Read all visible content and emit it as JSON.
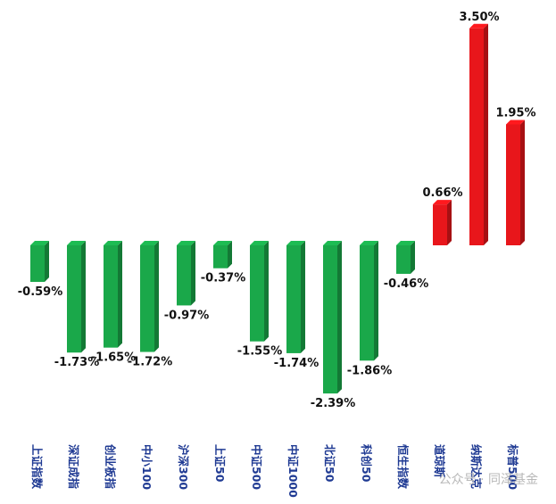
{
  "chart_data": {
    "type": "bar",
    "categories": [
      "上证指数",
      "深证成指",
      "创业板指",
      "中小100",
      "沪深300",
      "上证50",
      "中证500",
      "中证1000",
      "北证50",
      "科创50",
      "恒生指数",
      "道琼斯",
      "纳斯达克",
      "标普500"
    ],
    "values": [
      -0.59,
      -1.73,
      -1.65,
      -1.72,
      -0.97,
      -0.37,
      -1.55,
      -1.74,
      -2.39,
      -1.86,
      -0.46,
      0.66,
      3.5,
      1.95
    ],
    "value_labels": [
      "-0.59%",
      "-1.73%",
      "-1.65%",
      "-1.72%",
      "-0.97%",
      "-0.37%",
      "-1.55%",
      "-1.74%",
      "-2.39%",
      "-1.86%",
      "-0.46%",
      "0.66%",
      "3.50%",
      "1.95%"
    ],
    "ylim": [
      -2.6,
      3.6
    ],
    "grid": false,
    "colors": {
      "positive": "#e8161b",
      "negative": "#1aa84a"
    }
  },
  "watermark": "公众号 · 同泽基金"
}
